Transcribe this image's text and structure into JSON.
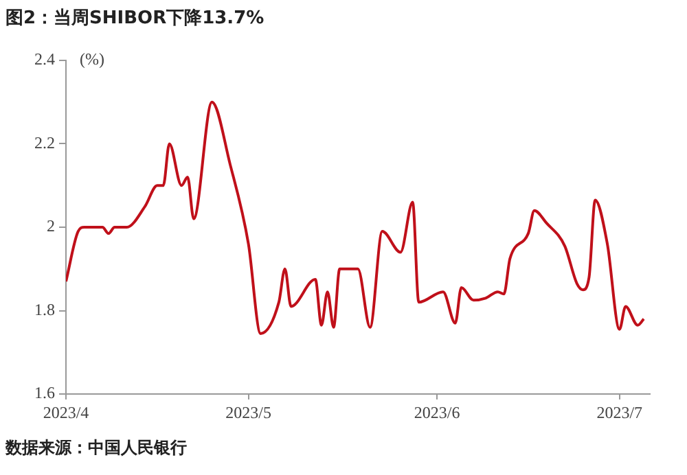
{
  "chart_data": {
    "type": "line",
    "title": "图2：当周SHIBOR下降13.7%",
    "ylabel": "(%)",
    "annotations": [
      "数据来源：中国人民银行"
    ],
    "x": [
      "2023-04-01",
      "2023-04-03",
      "2023-04-04",
      "2023-04-07",
      "2023-04-08",
      "2023-04-09",
      "2023-04-11",
      "2023-04-14",
      "2023-04-16",
      "2023-04-17",
      "2023-04-18",
      "2023-04-20",
      "2023-04-21",
      "2023-04-22",
      "2023-04-25",
      "2023-04-28",
      "2023-05-01",
      "2023-05-03",
      "2023-05-06",
      "2023-05-07",
      "2023-05-08",
      "2023-05-12",
      "2023-05-13",
      "2023-05-14",
      "2023-05-15",
      "2023-05-16",
      "2023-05-19",
      "2023-05-21",
      "2023-05-23",
      "2023-05-26",
      "2023-05-28",
      "2023-05-29",
      "2023-06-02",
      "2023-06-04",
      "2023-06-05",
      "2023-06-07",
      "2023-06-09",
      "2023-06-11",
      "2023-06-12",
      "2023-06-13",
      "2023-06-16",
      "2023-06-17",
      "2023-06-19",
      "2023-06-22",
      "2023-06-24",
      "2023-06-25",
      "2023-06-26",
      "2023-06-27",
      "2023-06-29",
      "2023-07-01",
      "2023-07-02",
      "2023-07-04",
      "2023-07-05"
    ],
    "series": [
      {
        "color": "#c0101a",
        "values": [
          1.87,
          1.99,
          2.0,
          2.0,
          1.985,
          2.0,
          2.0,
          2.05,
          2.1,
          2.1,
          2.2,
          2.1,
          2.12,
          2.02,
          2.3,
          2.15,
          1.96,
          1.745,
          1.82,
          1.9,
          1.81,
          1.875,
          1.765,
          1.845,
          1.76,
          1.9,
          1.9,
          1.76,
          1.99,
          1.94,
          2.06,
          1.82,
          1.845,
          1.77,
          1.855,
          1.825,
          1.83,
          1.845,
          1.84,
          1.925,
          1.985,
          2.04,
          2.01,
          1.955,
          1.865,
          1.85,
          1.88,
          2.065,
          1.96,
          1.755,
          1.81,
          1.765,
          1.78
        ]
      }
    ],
    "xlim": [
      "2023-04-01",
      "2023-07-06"
    ],
    "xticks": [
      {
        "value": "2023-04-01",
        "label": "2023/4"
      },
      {
        "value": "2023-05-01",
        "label": "2023/5"
      },
      {
        "value": "2023-06-01",
        "label": "2023/6"
      },
      {
        "value": "2023-07-01",
        "label": "2023/7"
      }
    ],
    "ylim": [
      1.6,
      2.4
    ],
    "yticks": [
      1.6,
      1.8,
      2,
      2.2,
      2.4
    ],
    "grid": false,
    "legend": false,
    "marker": "none",
    "line_style": "solid"
  }
}
